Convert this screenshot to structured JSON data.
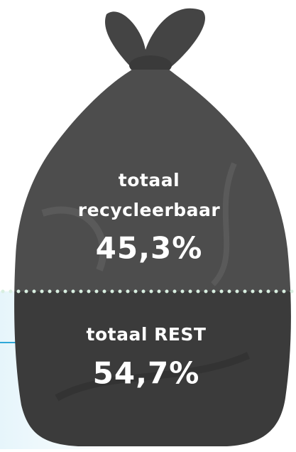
{
  "sections": [
    {
      "label_lines": [
        "totaal",
        "recycleerbaar"
      ],
      "value": "45,3%"
    },
    {
      "label_lines": [
        "totaal REST"
      ],
      "value": "54,7%"
    }
  ]
}
